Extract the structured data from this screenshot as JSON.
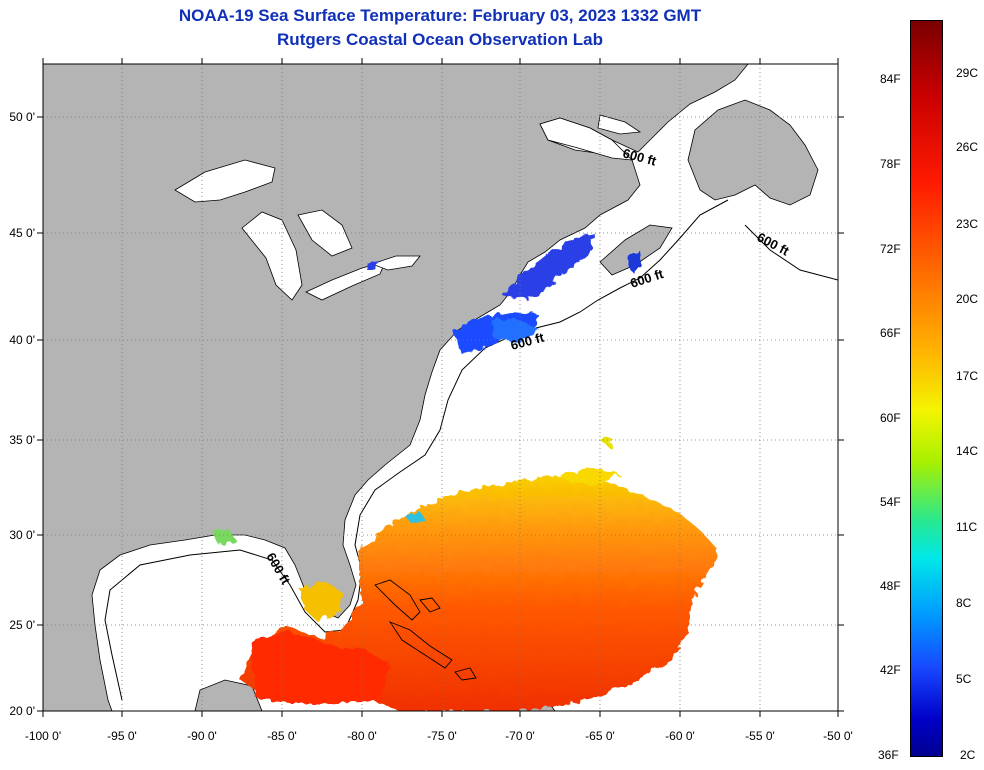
{
  "title": {
    "line1": "NOAA-19 Sea Surface Temperature:  February 03, 2023 1332 GMT",
    "line2": "Rutgers Coastal Ocean Observation Lab"
  },
  "map": {
    "lon_range": [
      -100,
      -50
    ],
    "lat_range": [
      20,
      52
    ],
    "lat_ticks": [
      "50 0'",
      "45 0'",
      "40 0'",
      "35 0'",
      "30 0'",
      "25 0'",
      "20 0'"
    ],
    "lon_ticks": [
      "-100 0'",
      "-95 0'",
      "-90 0'",
      "-85 0'",
      "-80 0'",
      "-75 0'",
      "-70 0'",
      "-65 0'",
      "-60 0'",
      "-55 0'",
      "-50 0'"
    ],
    "contour_labels": [
      "600 ft",
      "600 ft",
      "600 ft",
      "600 ft",
      "600 ft"
    ],
    "colors": {
      "land": "#b4b4b4",
      "ocean_no_data": "#ffffff",
      "coastline": "#000000"
    }
  },
  "colorbar": {
    "fahrenheit": [
      "84F",
      "78F",
      "72F",
      "66F",
      "60F",
      "54F",
      "48F",
      "42F",
      "36F"
    ],
    "celsius": [
      "29C",
      "26C",
      "23C",
      "20C",
      "17C",
      "14C",
      "11C",
      "8C",
      "5C",
      "2C"
    ],
    "colors": [
      "#7a0000",
      "#ff1a00",
      "#ff6a00",
      "#ffb400",
      "#f4f400",
      "#a8f000",
      "#00e8e8",
      "#0098ff",
      "#1848ff",
      "#000090"
    ]
  }
}
